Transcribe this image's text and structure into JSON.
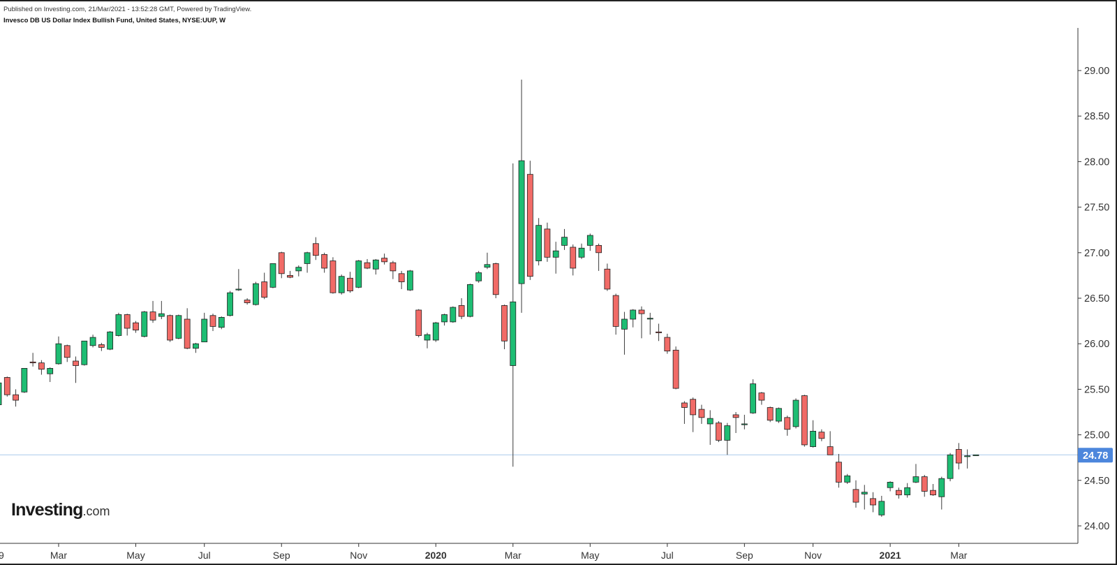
{
  "header": {
    "published": "Published on Investing.com, 21/Mar/2021 - 13:52:28 GMT, Powered by TradingView.",
    "instrument": "Invesco DB US Dollar Index Bullish Fund, United States, NYSE:UUP, W"
  },
  "logo": {
    "main": "Investing",
    "suffix": ".com"
  },
  "colors": {
    "up": "#1ebd73",
    "down": "#f16b67",
    "wick": "#3a3a3a",
    "price_line": "#a9c9ec",
    "price_badge": "#4c86dc"
  },
  "chart_data": {
    "type": "candlestick",
    "interval": "W",
    "ylim": [
      23.8,
      29.5
    ],
    "y_ticks": [
      "29.00",
      "28.50",
      "28.00",
      "27.50",
      "27.00",
      "26.50",
      "26.00",
      "25.50",
      "25.00",
      "24.50",
      "24.00"
    ],
    "x_ticks": [
      {
        "label": "9",
        "bar": 0,
        "bold": false
      },
      {
        "label": "Mar",
        "bar": 7,
        "bold": false
      },
      {
        "label": "May",
        "bar": 16,
        "bold": false
      },
      {
        "label": "Jul",
        "bar": 24,
        "bold": false
      },
      {
        "label": "Sep",
        "bar": 33,
        "bold": false
      },
      {
        "label": "Nov",
        "bar": 42,
        "bold": false
      },
      {
        "label": "2020",
        "bar": 51,
        "bold": true
      },
      {
        "label": "Mar",
        "bar": 60,
        "bold": false
      },
      {
        "label": "May",
        "bar": 69,
        "bold": false
      },
      {
        "label": "Jul",
        "bar": 78,
        "bold": false
      },
      {
        "label": "Sep",
        "bar": 87,
        "bold": false
      },
      {
        "label": "Nov",
        "bar": 95,
        "bold": false
      },
      {
        "label": "2021",
        "bar": 104,
        "bold": true
      },
      {
        "label": "Mar",
        "bar": 112,
        "bold": false
      }
    ],
    "last_price": 24.78,
    "last_price_label": "24.78",
    "candles": [
      [
        25.33,
        25.58,
        25.31,
        25.57
      ],
      [
        25.63,
        25.64,
        25.42,
        25.44
      ],
      [
        25.44,
        25.5,
        25.31,
        25.38
      ],
      [
        25.47,
        25.73,
        25.46,
        25.73
      ],
      [
        25.8,
        25.9,
        25.75,
        25.79
      ],
      [
        25.79,
        25.82,
        25.66,
        25.72
      ],
      [
        25.67,
        25.74,
        25.58,
        25.73
      ],
      [
        25.78,
        26.08,
        25.77,
        26.0
      ],
      [
        25.98,
        25.99,
        25.8,
        25.85
      ],
      [
        25.81,
        25.86,
        25.57,
        25.76
      ],
      [
        25.77,
        26.03,
        25.76,
        26.03
      ],
      [
        25.98,
        26.1,
        25.96,
        26.07
      ],
      [
        25.99,
        26.01,
        25.92,
        25.96
      ],
      [
        25.94,
        26.14,
        25.93,
        26.13
      ],
      [
        26.09,
        26.34,
        26.08,
        26.32
      ],
      [
        26.32,
        26.33,
        26.09,
        26.17
      ],
      [
        26.23,
        26.25,
        26.12,
        26.15
      ],
      [
        26.08,
        26.36,
        26.07,
        26.35
      ],
      [
        26.35,
        26.47,
        26.23,
        26.26
      ],
      [
        26.3,
        26.47,
        26.27,
        26.33
      ],
      [
        26.31,
        26.32,
        26.02,
        26.04
      ],
      [
        26.06,
        26.32,
        26.05,
        26.31
      ],
      [
        26.27,
        26.39,
        25.94,
        25.95
      ],
      [
        25.95,
        26.01,
        25.9,
        26.0
      ],
      [
        26.02,
        26.34,
        26.02,
        26.27
      ],
      [
        26.31,
        26.33,
        26.14,
        26.19
      ],
      [
        26.18,
        26.3,
        26.16,
        26.29
      ],
      [
        26.31,
        26.58,
        26.3,
        26.56
      ],
      [
        26.6,
        26.82,
        26.58,
        26.6
      ],
      [
        26.48,
        26.5,
        26.43,
        26.45
      ],
      [
        26.43,
        26.68,
        26.42,
        26.66
      ],
      [
        26.68,
        26.78,
        26.49,
        26.51
      ],
      [
        26.62,
        26.88,
        26.61,
        26.88
      ],
      [
        27.0,
        27.01,
        26.72,
        26.77
      ],
      [
        26.75,
        26.8,
        26.72,
        26.73
      ],
      [
        26.8,
        26.86,
        26.74,
        26.84
      ],
      [
        26.88,
        27.01,
        26.78,
        27.0
      ],
      [
        27.1,
        27.17,
        26.92,
        26.97
      ],
      [
        26.98,
        27.0,
        26.78,
        26.83
      ],
      [
        26.91,
        26.95,
        26.55,
        26.56
      ],
      [
        26.56,
        26.76,
        26.54,
        26.74
      ],
      [
        26.72,
        26.79,
        26.56,
        26.58
      ],
      [
        26.62,
        26.92,
        26.61,
        26.91
      ],
      [
        26.89,
        26.93,
        26.82,
        26.83
      ],
      [
        26.82,
        26.93,
        26.76,
        26.92
      ],
      [
        26.94,
        26.99,
        26.87,
        26.9
      ],
      [
        26.89,
        26.91,
        26.71,
        26.8
      ],
      [
        26.77,
        26.8,
        26.6,
        26.68
      ],
      [
        26.59,
        26.81,
        26.58,
        26.8
      ],
      [
        26.37,
        26.38,
        26.07,
        26.09
      ],
      [
        26.04,
        26.12,
        25.95,
        26.1
      ],
      [
        26.04,
        26.24,
        26.02,
        26.23
      ],
      [
        26.24,
        26.33,
        26.2,
        26.32
      ],
      [
        26.24,
        26.41,
        26.23,
        26.4
      ],
      [
        26.42,
        26.5,
        26.27,
        26.3
      ],
      [
        26.3,
        26.66,
        26.29,
        26.65
      ],
      [
        26.69,
        26.8,
        26.67,
        26.78
      ],
      [
        26.84,
        27.0,
        26.82,
        26.87
      ],
      [
        26.88,
        26.89,
        26.5,
        26.54
      ],
      [
        26.42,
        26.43,
        25.94,
        26.03
      ],
      [
        25.76,
        27.98,
        24.65,
        26.46
      ],
      [
        26.66,
        28.9,
        26.34,
        28.01
      ],
      [
        27.86,
        28.01,
        26.7,
        26.74
      ],
      [
        26.91,
        27.38,
        26.86,
        27.3
      ],
      [
        27.26,
        27.33,
        26.9,
        26.95
      ],
      [
        26.95,
        27.12,
        26.77,
        27.02
      ],
      [
        27.08,
        27.26,
        27.03,
        27.17
      ],
      [
        27.06,
        27.09,
        26.75,
        26.83
      ],
      [
        26.95,
        27.1,
        26.93,
        27.05
      ],
      [
        27.08,
        27.21,
        27.02,
        27.19
      ],
      [
        27.08,
        27.1,
        26.8,
        27.0
      ],
      [
        26.82,
        26.88,
        26.58,
        26.6
      ],
      [
        26.53,
        26.55,
        26.1,
        26.19
      ],
      [
        26.16,
        26.35,
        25.88,
        26.27
      ],
      [
        26.27,
        26.38,
        26.18,
        26.37
      ],
      [
        26.37,
        26.41,
        26.06,
        26.33
      ],
      [
        26.28,
        26.34,
        26.1,
        26.28
      ],
      [
        26.13,
        26.22,
        26.03,
        26.12
      ],
      [
        26.07,
        26.11,
        25.89,
        25.92
      ],
      [
        25.93,
        25.97,
        25.5,
        25.51
      ],
      [
        25.35,
        25.37,
        25.12,
        25.3
      ],
      [
        25.39,
        25.41,
        25.03,
        25.22
      ],
      [
        25.28,
        25.33,
        25.12,
        25.19
      ],
      [
        25.12,
        25.27,
        24.89,
        25.18
      ],
      [
        25.13,
        25.15,
        24.92,
        24.94
      ],
      [
        24.94,
        25.13,
        24.78,
        25.1
      ],
      [
        25.22,
        25.25,
        25.02,
        25.19
      ],
      [
        25.12,
        25.22,
        25.06,
        25.12
      ],
      [
        25.24,
        25.61,
        25.23,
        25.56
      ],
      [
        25.46,
        25.47,
        25.33,
        25.38
      ],
      [
        25.3,
        25.31,
        25.14,
        25.16
      ],
      [
        25.15,
        25.3,
        25.13,
        25.29
      ],
      [
        25.19,
        25.21,
        24.99,
        25.06
      ],
      [
        25.09,
        25.4,
        25.07,
        25.38
      ],
      [
        25.43,
        25.44,
        24.87,
        24.89
      ],
      [
        24.87,
        25.16,
        24.86,
        25.04
      ],
      [
        25.03,
        25.06,
        24.93,
        24.96
      ],
      [
        24.87,
        25.04,
        24.78,
        24.78
      ],
      [
        24.7,
        24.79,
        24.42,
        24.48
      ],
      [
        24.48,
        24.57,
        24.46,
        24.55
      ],
      [
        24.4,
        24.5,
        24.2,
        24.26
      ],
      [
        24.35,
        24.45,
        24.18,
        24.37
      ],
      [
        24.3,
        24.37,
        24.15,
        24.23
      ],
      [
        24.12,
        24.33,
        24.1,
        24.27
      ],
      [
        24.42,
        24.49,
        24.38,
        24.48
      ],
      [
        24.39,
        24.42,
        24.3,
        24.34
      ],
      [
        24.34,
        24.47,
        24.31,
        24.42
      ],
      [
        24.48,
        24.68,
        24.47,
        24.54
      ],
      [
        24.54,
        24.56,
        24.32,
        24.38
      ],
      [
        24.39,
        24.46,
        24.33,
        24.34
      ],
      [
        24.32,
        24.54,
        24.18,
        24.52
      ],
      [
        24.52,
        24.8,
        24.49,
        24.78
      ],
      [
        24.84,
        24.91,
        24.62,
        24.69
      ],
      [
        24.76,
        24.84,
        24.63,
        24.77
      ],
      [
        24.78,
        24.78,
        24.78,
        24.78
      ]
    ]
  }
}
